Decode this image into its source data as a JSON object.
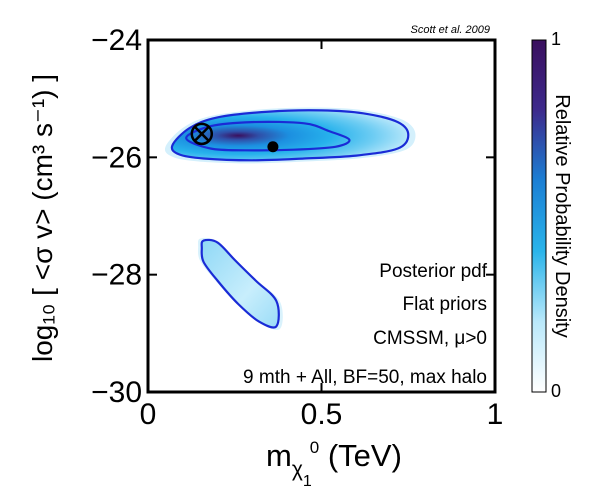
{
  "chart_data": {
    "type": "heatmap",
    "title": "",
    "credit": "Scott et al. 2009",
    "xlabel": "m",
    "xlabel_sub": "χ",
    "xlabel_sub2": "1",
    "xlabel_sup": "0",
    "xlabel_unit": " (TeV)",
    "ylabel": "log₁₀ [ <σ v> (cm³ s⁻¹) ]",
    "xlim": [
      0,
      1
    ],
    "ylim": [
      -30,
      -24
    ],
    "xticks": [
      {
        "value": 0,
        "label": "0"
      },
      {
        "value": 0.5,
        "label": "0.5"
      },
      {
        "value": 1,
        "label": "1"
      }
    ],
    "yticks": [
      {
        "value": -24,
        "label": "−24"
      },
      {
        "value": -26,
        "label": "−26"
      },
      {
        "value": -28,
        "label": "−28"
      },
      {
        "value": -30,
        "label": "−30"
      }
    ],
    "colorbar": {
      "label": "Relative Probability Density",
      "min": 0,
      "max": 1,
      "min_label": "0",
      "max_label": "1",
      "colors": [
        "#ffffff",
        "#b9e8fa",
        "#2ab4ea",
        "#1b7fd4",
        "#3d2a8c",
        "#3a0f5e"
      ]
    },
    "regions": [
      {
        "name": "upper",
        "contour_outer": [
          [
            0.07,
            -25.8
          ],
          [
            0.12,
            -25.5
          ],
          [
            0.2,
            -25.32
          ],
          [
            0.35,
            -25.22
          ],
          [
            0.5,
            -25.2
          ],
          [
            0.62,
            -25.25
          ],
          [
            0.72,
            -25.4
          ],
          [
            0.75,
            -25.62
          ],
          [
            0.72,
            -25.85
          ],
          [
            0.6,
            -25.97
          ],
          [
            0.45,
            -26.02
          ],
          [
            0.3,
            -26.05
          ],
          [
            0.16,
            -26.02
          ],
          [
            0.09,
            -25.95
          ]
        ],
        "contour_inner": [
          [
            0.11,
            -25.67
          ],
          [
            0.18,
            -25.47
          ],
          [
            0.3,
            -25.4
          ],
          [
            0.45,
            -25.42
          ],
          [
            0.52,
            -25.55
          ],
          [
            0.58,
            -25.7
          ],
          [
            0.54,
            -25.82
          ],
          [
            0.42,
            -25.87
          ],
          [
            0.28,
            -25.88
          ],
          [
            0.18,
            -25.85
          ]
        ],
        "density_peak": [
          0.26,
          -25.63
        ]
      },
      {
        "name": "lower",
        "contour_outer": [
          [
            0.16,
            -27.42
          ],
          [
            0.2,
            -27.45
          ],
          [
            0.25,
            -27.75
          ],
          [
            0.31,
            -28.1
          ],
          [
            0.37,
            -28.45
          ],
          [
            0.37,
            -28.88
          ],
          [
            0.32,
            -28.8
          ],
          [
            0.26,
            -28.5
          ],
          [
            0.2,
            -28.1
          ],
          [
            0.16,
            -27.78
          ],
          [
            0.155,
            -27.55
          ]
        ]
      }
    ],
    "markers": [
      {
        "name": "best-fit-point",
        "symbol": "circled-cross",
        "x": 0.155,
        "y": -25.6
      },
      {
        "name": "posterior-mean",
        "symbol": "filled-dot",
        "x": 0.36,
        "y": -25.82
      }
    ],
    "annotations": [
      "Posterior pdf",
      "Flat priors",
      "CMSSM, μ>0",
      "9 mth + All, BF=50, max halo"
    ],
    "contour_color": "#1a2bd6"
  }
}
